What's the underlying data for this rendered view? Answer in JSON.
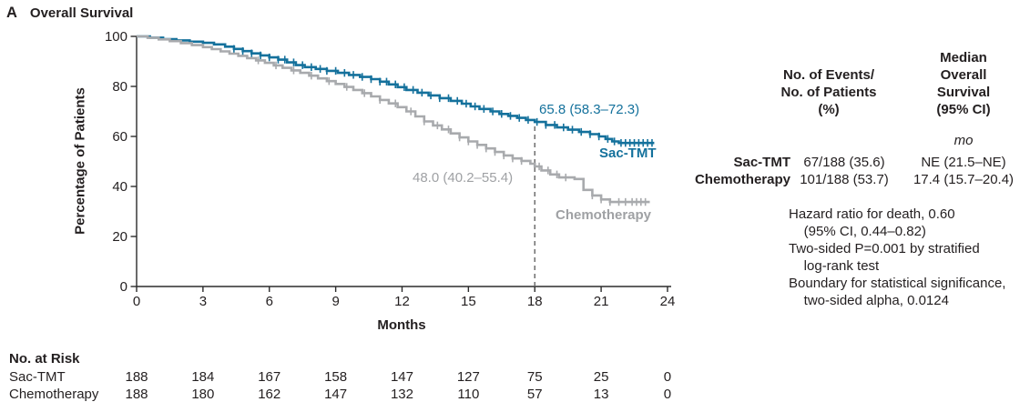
{
  "panel": {
    "label": "A",
    "title": "Overall Survival"
  },
  "axes": {
    "y_label": "Percentage of Patients",
    "y_ticks": [
      0,
      20,
      40,
      60,
      80,
      100
    ],
    "x_label": "Months",
    "x_ticks": [
      0,
      3,
      6,
      9,
      12,
      15,
      18,
      21,
      24
    ]
  },
  "colors": {
    "sac_tmt": "#14719c",
    "chemo": "#a8aaad",
    "chemo_text": "#9fa1a4",
    "text": "#231f20",
    "axis": "#2b2b2b",
    "dashed": "#6e6e6e"
  },
  "annotations": {
    "sac_estimate": "65.8 (58.3–72.3)",
    "sac_label": "Sac-TMT",
    "chemo_estimate": "48.0 (40.2–55.4)",
    "chemo_label": "Chemotherapy"
  },
  "stats_table": {
    "col1_header": "No. of Events/\nNo. of Patients\n(%)",
    "col2_header": "Median\nOverall\nSurvival\n(95% CI)",
    "unit": "mo",
    "rows": [
      {
        "label": "Sac-TMT",
        "events": "67/188 (35.6)",
        "median": "NE (21.5–NE)"
      },
      {
        "label": "Chemotherapy",
        "events": "101/188 (53.7)",
        "median": "17.4 (15.7–20.4)"
      }
    ],
    "notes": "Hazard ratio for death, 0.60\n    (95% CI, 0.44–0.82)\nTwo-sided P=0.001 by stratified\n    log-rank test\nBoundary for statistical significance,\n    two-sided alpha, 0.0124"
  },
  "risk_table": {
    "title": "No. at Risk",
    "rows": [
      {
        "label": "Sac-TMT",
        "counts": [
          188,
          184,
          167,
          158,
          147,
          127,
          75,
          25,
          0
        ]
      },
      {
        "label": "Chemotherapy",
        "counts": [
          188,
          180,
          162,
          147,
          132,
          110,
          57,
          13,
          0
        ]
      }
    ]
  },
  "chart_data": {
    "type": "line",
    "subtype": "kaplan-meier-step",
    "title": "Overall Survival",
    "xlabel": "Months",
    "ylabel": "Percentage of Patients",
    "xlim": [
      0,
      24
    ],
    "ylim": [
      0,
      100
    ],
    "grid": false,
    "landmark": {
      "month": 18,
      "sac_tmt_pct": 65.8,
      "chemo_pct": 48.0
    },
    "series": [
      {
        "name": "Sac-TMT",
        "color": "#14719c",
        "steps": [
          [
            0,
            100
          ],
          [
            0.6,
            99.5
          ],
          [
            1.2,
            98.9
          ],
          [
            1.8,
            98.4
          ],
          [
            2.4,
            97.9
          ],
          [
            3.0,
            97.4
          ],
          [
            3.5,
            96.8
          ],
          [
            4.0,
            95.9
          ],
          [
            4.4,
            95.0
          ],
          [
            4.8,
            94.1
          ],
          [
            5.2,
            93.2
          ],
          [
            5.6,
            92.4
          ],
          [
            6.0,
            91.6
          ],
          [
            6.4,
            90.7
          ],
          [
            6.8,
            89.6
          ],
          [
            7.2,
            88.5
          ],
          [
            7.6,
            87.7
          ],
          [
            8.1,
            87.0
          ],
          [
            8.6,
            86.2
          ],
          [
            9.1,
            85.4
          ],
          [
            9.6,
            84.6
          ],
          [
            10.1,
            83.8
          ],
          [
            10.6,
            82.9
          ],
          [
            11.0,
            81.9
          ],
          [
            11.4,
            80.8
          ],
          [
            11.8,
            79.7
          ],
          [
            12.2,
            78.6
          ],
          [
            12.7,
            77.5
          ],
          [
            13.2,
            76.4
          ],
          [
            13.7,
            75.3
          ],
          [
            14.2,
            74.2
          ],
          [
            14.7,
            73.1
          ],
          [
            15.1,
            72.0
          ],
          [
            15.5,
            71.0
          ],
          [
            16.0,
            70.0
          ],
          [
            16.4,
            69.0
          ],
          [
            16.8,
            68.2
          ],
          [
            17.2,
            67.4
          ],
          [
            17.6,
            66.6
          ],
          [
            18.0,
            65.8
          ],
          [
            18.5,
            64.6
          ],
          [
            19.0,
            63.6
          ],
          [
            19.5,
            62.7
          ],
          [
            20.0,
            61.8
          ],
          [
            20.5,
            60.9
          ],
          [
            20.9,
            60.0
          ],
          [
            21.2,
            59.0
          ],
          [
            21.5,
            58.0
          ],
          [
            21.8,
            57.4
          ],
          [
            23.4,
            57.4
          ]
        ],
        "censor_times": [
          4.4,
          4.8,
          5.2,
          5.6,
          6.0,
          6.4,
          6.7,
          7.1,
          7.5,
          7.9,
          8.3,
          8.6,
          9.0,
          9.4,
          9.8,
          10.2,
          10.6,
          11.0,
          11.3,
          11.7,
          12.1,
          12.5,
          12.9,
          13.3,
          13.7,
          14.1,
          14.5,
          14.9,
          15.3,
          15.7,
          16.1,
          16.5,
          16.9,
          17.3,
          17.7,
          18.1,
          18.5,
          18.9,
          19.3,
          19.7,
          20.1,
          20.5,
          20.9,
          21.3,
          21.6,
          21.9,
          22.1,
          22.3,
          22.5,
          22.7,
          22.9,
          23.1,
          23.3
        ],
        "n_at_risk": [
          188,
          184,
          167,
          158,
          147,
          127,
          75,
          25,
          0
        ]
      },
      {
        "name": "Chemotherapy",
        "color": "#a8aaad",
        "steps": [
          [
            0,
            100
          ],
          [
            0.5,
            99.4
          ],
          [
            1.0,
            98.8
          ],
          [
            1.5,
            98.1
          ],
          [
            2.0,
            97.3
          ],
          [
            2.5,
            96.5
          ],
          [
            3.0,
            95.7
          ],
          [
            3.4,
            94.9
          ],
          [
            3.8,
            94.0
          ],
          [
            4.2,
            93.1
          ],
          [
            4.6,
            92.2
          ],
          [
            5.0,
            91.3
          ],
          [
            5.4,
            90.4
          ],
          [
            5.8,
            89.4
          ],
          [
            6.2,
            88.4
          ],
          [
            6.6,
            87.4
          ],
          [
            7.0,
            86.4
          ],
          [
            7.4,
            85.4
          ],
          [
            7.8,
            84.3
          ],
          [
            8.2,
            83.2
          ],
          [
            8.6,
            82.1
          ],
          [
            9.0,
            81.0
          ],
          [
            9.4,
            79.8
          ],
          [
            9.8,
            78.6
          ],
          [
            10.2,
            77.3
          ],
          [
            10.6,
            76.0
          ],
          [
            11.0,
            74.6
          ],
          [
            11.4,
            73.2
          ],
          [
            11.8,
            71.7
          ],
          [
            12.2,
            70.0
          ],
          [
            12.6,
            68.0
          ],
          [
            13.0,
            66.0
          ],
          [
            13.4,
            64.4
          ],
          [
            13.8,
            62.8
          ],
          [
            14.2,
            61.2
          ],
          [
            14.6,
            59.6
          ],
          [
            15.0,
            58.0
          ],
          [
            15.4,
            56.6
          ],
          [
            15.8,
            55.2
          ],
          [
            16.2,
            53.8
          ],
          [
            16.6,
            52.4
          ],
          [
            17.0,
            51.2
          ],
          [
            17.4,
            50.2
          ],
          [
            17.8,
            49.1
          ],
          [
            18.0,
            48.0
          ],
          [
            18.3,
            46.4
          ],
          [
            18.7,
            44.8
          ],
          [
            19.1,
            43.6
          ],
          [
            19.8,
            43.0
          ],
          [
            20.2,
            38.6
          ],
          [
            20.6,
            36.4
          ],
          [
            21.0,
            34.8
          ],
          [
            21.4,
            33.8
          ],
          [
            23.2,
            33.8
          ]
        ],
        "censor_times": [
          5.5,
          6.3,
          7.1,
          7.9,
          8.7,
          9.5,
          10.3,
          11.0,
          11.7,
          12.4,
          13.0,
          13.6,
          14.1,
          14.6,
          15.0,
          15.4,
          15.8,
          16.2,
          16.6,
          17.0,
          17.4,
          18.2,
          18.6,
          19.0,
          19.4,
          20.6,
          21.0,
          21.4,
          21.8,
          22.1,
          22.4,
          22.6,
          22.8,
          23.0
        ],
        "n_at_risk": [
          188,
          180,
          162,
          147,
          132,
          110,
          57,
          13,
          0
        ]
      }
    ]
  }
}
